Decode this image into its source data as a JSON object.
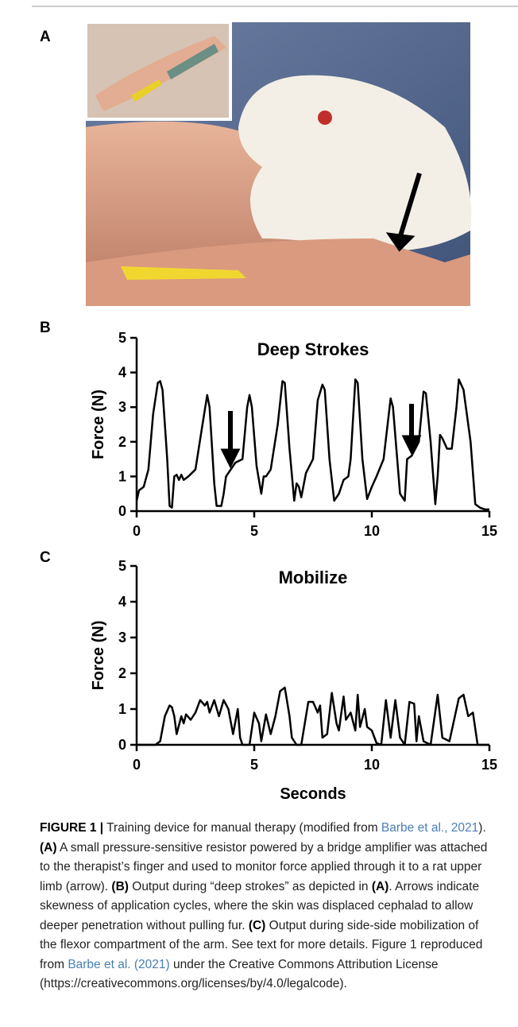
{
  "figure": {
    "panel_a_label": "A"
  },
  "chart_data": [
    {
      "type": "line",
      "panel": "B",
      "title": "Deep Strokes",
      "y_label": "Force (N)",
      "color": "#000000",
      "xlim": [
        0,
        15
      ],
      "ylim": [
        0,
        5
      ],
      "xticks": [
        0,
        5,
        10,
        15
      ],
      "yticks": [
        0,
        1,
        2,
        3,
        4,
        5
      ],
      "x": [
        0,
        0.1,
        0.3,
        0.5,
        0.7,
        0.9,
        1.0,
        1.1,
        1.3,
        1.4,
        1.5,
        1.6,
        1.7,
        1.8,
        1.9,
        2.0,
        2.2,
        2.5,
        2.8,
        3.0,
        3.1,
        3.3,
        3.4,
        3.6,
        3.7,
        3.8,
        4.0,
        4.2,
        4.5,
        4.7,
        4.8,
        4.9,
        5.1,
        5.3,
        5.4,
        5.5,
        5.7,
        6.0,
        6.2,
        6.3,
        6.5,
        6.7,
        6.8,
        6.9,
        7.0,
        7.2,
        7.5,
        7.7,
        7.9,
        8.0,
        8.2,
        8.4,
        8.6,
        8.8,
        9.0,
        9.1,
        9.3,
        9.4,
        9.6,
        9.8,
        10.0,
        10.2,
        10.5,
        10.8,
        10.9,
        11.2,
        11.4,
        11.5,
        11.7,
        12.0,
        12.2,
        12.3,
        12.5,
        12.7,
        12.8,
        12.9,
        13.0,
        13.2,
        13.4,
        13.6,
        13.7,
        13.9,
        14.2,
        14.4,
        14.6,
        14.8,
        15
      ],
      "values": [
        0.3,
        0.6,
        0.7,
        1.2,
        2.8,
        3.7,
        3.75,
        3.5,
        1.5,
        0.15,
        0.1,
        1.0,
        1.05,
        0.9,
        1.05,
        0.9,
        1.0,
        1.2,
        2.5,
        3.35,
        3.0,
        0.8,
        0.15,
        0.15,
        0.5,
        1.0,
        1.2,
        1.4,
        1.5,
        3.0,
        3.35,
        3.0,
        1.3,
        0.5,
        1.0,
        1.0,
        1.2,
        2.5,
        3.75,
        3.7,
        1.8,
        0.3,
        0.8,
        0.7,
        0.4,
        1.1,
        1.5,
        3.2,
        3.65,
        3.5,
        1.5,
        0.3,
        0.5,
        0.9,
        1.0,
        1.5,
        3.8,
        3.7,
        1.5,
        0.35,
        0.7,
        1.0,
        1.5,
        3.25,
        3.0,
        0.5,
        0.3,
        1.5,
        1.6,
        2.0,
        3.45,
        3.4,
        2.0,
        0.2,
        1.0,
        2.2,
        2.1,
        1.8,
        1.8,
        3.0,
        3.8,
        3.5,
        2.0,
        0.2,
        0.1,
        0.05,
        0.05
      ]
    },
    {
      "type": "line",
      "panel": "C",
      "title": "Mobilize",
      "y_label": "Force (N)",
      "x_label": "Seconds",
      "color": "#000000",
      "xlim": [
        0,
        15
      ],
      "ylim": [
        0,
        5
      ],
      "xticks": [
        0,
        5,
        10,
        15
      ],
      "yticks": [
        0,
        1,
        2,
        3,
        4,
        5
      ],
      "x": [
        0,
        0.8,
        1.0,
        1.2,
        1.4,
        1.5,
        1.6,
        1.7,
        1.9,
        2.0,
        2.1,
        2.3,
        2.5,
        2.7,
        2.9,
        3.0,
        3.1,
        3.3,
        3.5,
        3.7,
        3.9,
        4.1,
        4.3,
        4.4,
        4.5,
        4.8,
        5.0,
        5.2,
        5.3,
        5.5,
        5.7,
        5.9,
        6.1,
        6.3,
        6.5,
        6.6,
        6.8,
        7.0,
        7.3,
        7.5,
        7.7,
        7.8,
        7.9,
        8.1,
        8.3,
        8.5,
        8.6,
        8.8,
        8.9,
        9.1,
        9.3,
        9.4,
        9.5,
        9.7,
        9.8,
        10.0,
        10.2,
        10.4,
        10.6,
        10.8,
        11.0,
        11.2,
        11.4,
        11.6,
        11.8,
        11.9,
        12.0,
        12.2,
        12.5,
        12.8,
        13.0,
        13.3,
        13.7,
        13.9,
        14.1,
        14.3,
        14.5,
        14.8,
        15
      ],
      "values": [
        0,
        0,
        0.1,
        0.8,
        1.1,
        1.05,
        0.8,
        0.3,
        0.8,
        0.6,
        0.85,
        0.7,
        0.9,
        1.25,
        1.1,
        1.2,
        0.9,
        1.25,
        0.8,
        1.25,
        1.0,
        0.3,
        1.0,
        0.2,
        0,
        0,
        0.9,
        0.6,
        0.1,
        0.85,
        0.3,
        0.8,
        1.5,
        1.6,
        0.8,
        0.2,
        0,
        0,
        1.2,
        1.2,
        0.9,
        1.1,
        0.2,
        0.3,
        1.45,
        0.6,
        0.4,
        1.35,
        0.7,
        0.9,
        0.4,
        1.4,
        0.5,
        1.0,
        0.5,
        0.4,
        0.05,
        0,
        1.25,
        0.2,
        1.25,
        0.2,
        0,
        1.2,
        1.15,
        0.1,
        0.8,
        0.1,
        0,
        1.4,
        0.2,
        0.1,
        1.3,
        1.4,
        0.8,
        0.9,
        0,
        0,
        0
      ]
    }
  ],
  "caption": {
    "label": "FIGURE 1 |",
    "parts": [
      " Training device for manual therapy (modified from ",
      "Barbe et al., 2021",
      "). ",
      "(A)",
      " A small pressure-sensitive resistor powered by a bridge amplifier was attached to the therapist’s finger and used to monitor force applied through it to a rat upper limb (arrow). ",
      "(B)",
      " Output during “deep strokes” as depicted in ",
      "(A)",
      ". Arrows indicate skewness of application cycles, where the skin was displaced cephalad to allow deeper penetration without pulling fur. ",
      "(C)",
      " Output during side-side mobilization of the flexor compartment of the arm. See text for more details. Figure 1 reproduced from ",
      "Barbe et al. (2021)",
      " under the Creative Commons Attribution License (https://creativecommons.org/licenses/by/4.0/legalcode)."
    ]
  }
}
